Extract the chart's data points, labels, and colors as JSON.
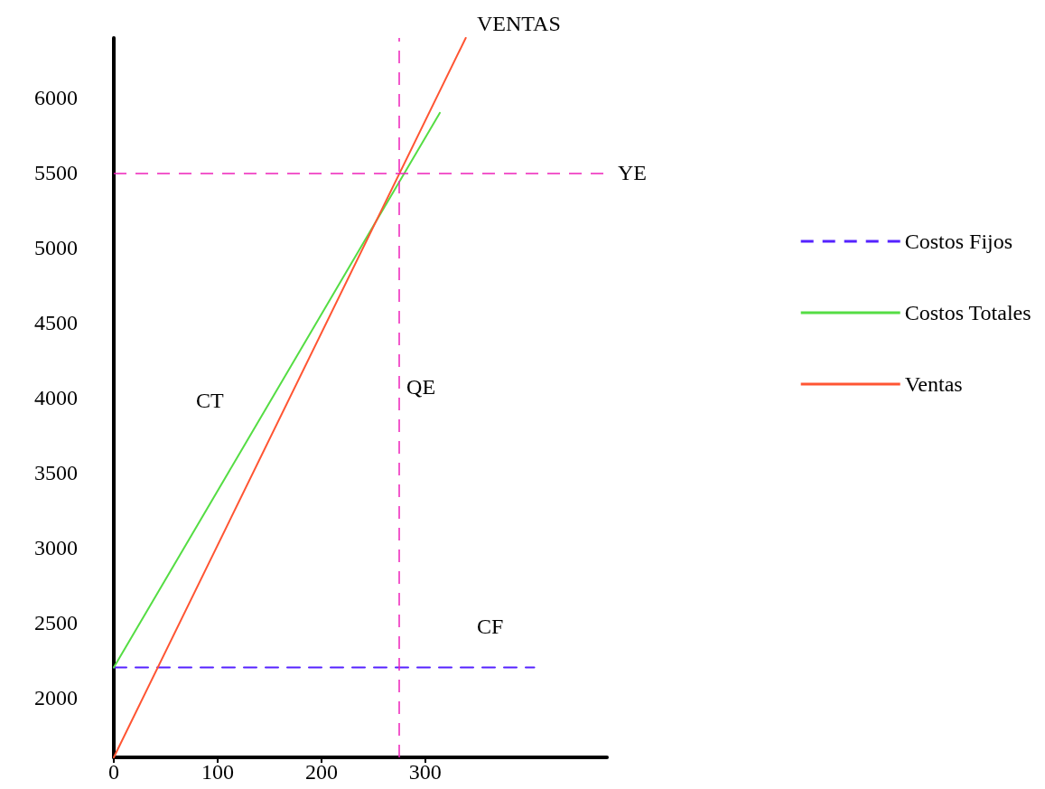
{
  "chart_data": {
    "type": "line",
    "xlim": [
      0,
      475
    ],
    "ylim": [
      1600,
      6400
    ],
    "xticks": [
      0,
      100,
      200,
      300
    ],
    "yticks": [
      2000,
      2500,
      3000,
      3500,
      4000,
      4500,
      5000,
      5500,
      6000
    ],
    "grid": false,
    "legend": "right",
    "series": [
      {
        "name": "Costos Fijos",
        "color": "#5522ff",
        "line_style": "dashed",
        "x": [
          0,
          405
        ],
        "values": [
          2200,
          2200
        ]
      },
      {
        "name": "Costos Totales",
        "color": "#55dd44",
        "line_style": "solid",
        "x": [
          0,
          314
        ],
        "values": [
          2200,
          5900
        ]
      },
      {
        "name": "Ventas",
        "color": "#ff5533",
        "line_style": "solid",
        "x": [
          0,
          339
        ],
        "values": [
          1600,
          6400
        ]
      }
    ],
    "ref_lines": [
      {
        "axis": "y",
        "value": 5500,
        "label": "YE",
        "color": "#ee22bb",
        "line_style": "dashed"
      },
      {
        "axis": "x",
        "value": 275,
        "label": "QE",
        "color": "#ee22bb",
        "line_style": "dashed"
      }
    ],
    "annotations": [
      "VENTAS",
      "CT",
      "CF"
    ]
  }
}
